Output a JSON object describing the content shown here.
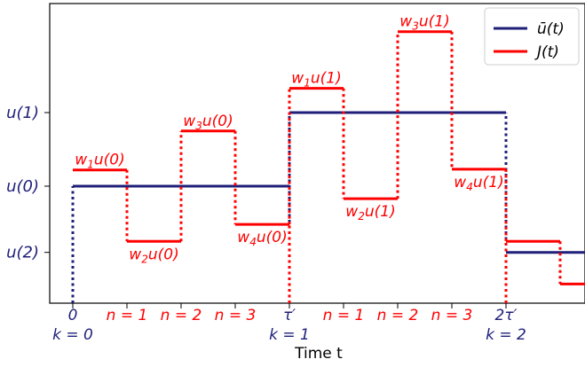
{
  "chart_data": {
    "type": "line",
    "xlabel": "Time t",
    "ylabel": "",
    "xlim": [
      0,
      2.6
    ],
    "y_levels": [
      "u(2)",
      "u(0)",
      "u(1)"
    ],
    "grid": false,
    "legend": {
      "position": "top-right",
      "entries": [
        "ū(t)",
        "J(t)"
      ]
    },
    "colors": {
      "ubar": "#1f1f7a",
      "J": "#ff0000"
    },
    "x_ticks": [
      {
        "x": 0,
        "line1": "0",
        "line2": "k = 0",
        "color": "#1f1f7a"
      },
      {
        "x": 0.25,
        "line1": "n = 1",
        "line2": "",
        "color": "#ff0000"
      },
      {
        "x": 0.5,
        "line1": "n = 2",
        "line2": "",
        "color": "#ff0000"
      },
      {
        "x": 0.75,
        "line1": "n = 3",
        "line2": "",
        "color": "#ff0000"
      },
      {
        "x": 1,
        "line1": "τ′",
        "line2": "k = 1",
        "color": "#1f1f7a"
      },
      {
        "x": 1.25,
        "line1": "n = 1",
        "line2": "",
        "color": "#ff0000"
      },
      {
        "x": 1.5,
        "line1": "n = 2",
        "line2": "",
        "color": "#ff0000"
      },
      {
        "x": 1.75,
        "line1": "n = 3",
        "line2": "",
        "color": "#ff0000"
      },
      {
        "x": 2,
        "line1": "2τ′",
        "line2": "k = 2",
        "color": "#1f1f7a"
      }
    ],
    "y_ticks": [
      {
        "y": 1.0,
        "label": "u(1)"
      },
      {
        "y": 0.0,
        "label": "u(0)"
      },
      {
        "y": -0.9,
        "label": "u(2)"
      }
    ],
    "series": [
      {
        "name": "ū(t)",
        "steps": [
          {
            "x0": 0,
            "x1": 1,
            "y": 0.0
          },
          {
            "x0": 1,
            "x1": 2,
            "y": 1.0
          },
          {
            "x0": 2,
            "x1": 2.6,
            "y": -0.9
          }
        ]
      },
      {
        "name": "J(t)",
        "steps": [
          {
            "x0": 0,
            "x1": 0.25,
            "y": 0.22,
            "label": "w1u(0)",
            "pos": "above"
          },
          {
            "x0": 0.25,
            "x1": 0.5,
            "y": -0.75,
            "label": "w2u(0)",
            "pos": "below"
          },
          {
            "x0": 0.5,
            "x1": 0.75,
            "y": 0.75,
            "label": "w3u(0)",
            "pos": "above"
          },
          {
            "x0": 0.75,
            "x1": 1,
            "y": -0.52,
            "label": "w4u(0)",
            "pos": "below"
          },
          {
            "x0": 1,
            "x1": 1.25,
            "y": 1.33,
            "label": "w1u(1)",
            "pos": "above"
          },
          {
            "x0": 1.25,
            "x1": 1.5,
            "y": -0.17,
            "label": "w2u(1)",
            "pos": "below"
          },
          {
            "x0": 1.5,
            "x1": 1.75,
            "y": 2.1,
            "label": "w3u(1)",
            "pos": "above"
          },
          {
            "x0": 1.75,
            "x1": 2,
            "y": 0.23,
            "label": "w4u(1)",
            "pos": "below"
          },
          {
            "x0": 2,
            "x1": 2.25,
            "y": -0.75
          },
          {
            "x0": 2.25,
            "x1": 2.6,
            "y": -1.33
          }
        ]
      }
    ]
  }
}
